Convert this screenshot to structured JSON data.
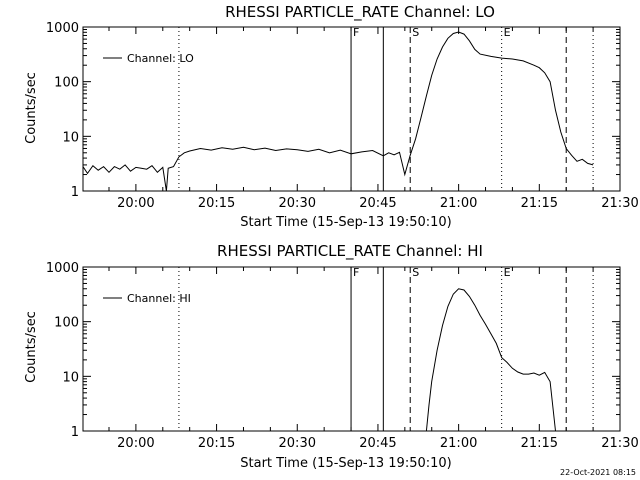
{
  "footer": {
    "timestamp": "22-Oct-2021 08:15"
  },
  "chart_data": [
    {
      "type": "line",
      "title": "RHESSI PARTICLE_RATE Channel: LO",
      "xlabel": "Start Time (15-Sep-13 19:50:10)",
      "ylabel": "Counts/sec",
      "yscale": "log",
      "xlim": [
        "19:50:10",
        "21:30:00"
      ],
      "ylim": [
        1,
        1000
      ],
      "xticks": [
        "20:00",
        "20:15",
        "20:30",
        "20:45",
        "21:00",
        "21:15",
        "21:30"
      ],
      "yticks": [
        "1",
        "10",
        "100",
        "1000"
      ],
      "grid": false,
      "legend_position": "top-left",
      "series": [
        {
          "name": "Channel: LO",
          "x": [
            "19:50:10",
            "19:51",
            "19:52",
            "19:53",
            "19:54",
            "19:55",
            "19:56",
            "19:57",
            "19:58",
            "19:59",
            "20:00",
            "20:01",
            "20:02",
            "20:03",
            "20:04",
            "20:05",
            "20:05:40",
            "20:06",
            "20:07",
            "20:08",
            "20:09",
            "20:10",
            "20:12",
            "20:14",
            "20:16",
            "20:18",
            "20:20",
            "20:22",
            "20:24",
            "20:26",
            "20:28",
            "20:30",
            "20:32",
            "20:34",
            "20:36",
            "20:38",
            "20:40",
            "20:42",
            "20:44",
            "20:46",
            "20:47",
            "20:48",
            "20:49",
            "20:50",
            "20:51",
            "20:52",
            "20:53",
            "20:54",
            "20:55",
            "20:56",
            "20:57",
            "20:58",
            "20:59",
            "21:00",
            "21:01",
            "21:02",
            "21:03",
            "21:04",
            "21:06",
            "21:08",
            "21:10",
            "21:12",
            "21:14",
            "21:15",
            "21:16",
            "21:17",
            "21:18",
            "21:19",
            "21:20",
            "21:21",
            "21:22",
            "21:23",
            "21:24",
            "21:25"
          ],
          "values": [
            2.8,
            2.1,
            2.9,
            2.4,
            2.8,
            2.2,
            2.8,
            2.5,
            3.0,
            2.3,
            2.7,
            2.6,
            2.5,
            2.9,
            2.2,
            2.7,
            1.0,
            2.6,
            2.8,
            4.2,
            5.0,
            5.4,
            6.0,
            5.6,
            6.2,
            5.8,
            6.3,
            5.7,
            6.1,
            5.5,
            5.9,
            5.7,
            5.3,
            5.8,
            5.0,
            5.6,
            4.8,
            5.2,
            5.5,
            4.4,
            5.0,
            4.6,
            5.1,
            2.0,
            4.5,
            9.0,
            22,
            55,
            130,
            260,
            430,
            620,
            760,
            810,
            740,
            560,
            390,
            320,
            290,
            270,
            260,
            240,
            200,
            180,
            145,
            100,
            30,
            12,
            6.0,
            4.5,
            3.5,
            3.8,
            3.2,
            3.0
          ]
        }
      ],
      "markers": [
        {
          "x": "20:08",
          "label": "",
          "style": "dotted"
        },
        {
          "x": "20:40",
          "label": "F",
          "style": "solid"
        },
        {
          "x": "20:46",
          "label": "",
          "style": "solid"
        },
        {
          "x": "20:51",
          "label": "S",
          "style": "dashed"
        },
        {
          "x": "21:08",
          "label": "E",
          "style": "dotted"
        },
        {
          "x": "21:20",
          "label": "",
          "style": "dashed"
        },
        {
          "x": "21:25",
          "label": "",
          "style": "dotted"
        }
      ]
    },
    {
      "type": "line",
      "title": "RHESSI PARTICLE_RATE Channel: HI",
      "xlabel": "Start Time (15-Sep-13 19:50:10)",
      "ylabel": "Counts/sec",
      "yscale": "log",
      "xlim": [
        "19:50:10",
        "21:30:00"
      ],
      "ylim": [
        1,
        1000
      ],
      "xticks": [
        "20:00",
        "20:15",
        "20:30",
        "20:45",
        "21:00",
        "21:15",
        "21:30"
      ],
      "yticks": [
        "1",
        "10",
        "100",
        "1000"
      ],
      "grid": false,
      "legend_position": "top-left",
      "series": [
        {
          "name": "Channel: HI",
          "x": [
            "20:54",
            "20:54:30",
            "20:55",
            "20:56",
            "20:57",
            "20:58",
            "20:59",
            "21:00",
            "21:01",
            "21:02",
            "21:03",
            "21:04",
            "21:05",
            "21:06",
            "21:07",
            "21:08",
            "21:09",
            "21:10",
            "21:11",
            "21:12",
            "21:13",
            "21:14",
            "21:15",
            "21:16",
            "21:17",
            "21:18"
          ],
          "values": [
            1.0,
            3,
            8,
            30,
            85,
            190,
            320,
            400,
            380,
            290,
            200,
            130,
            90,
            60,
            40,
            22,
            18,
            14,
            12,
            11,
            11,
            11.5,
            10.5,
            11.8,
            8,
            1.0
          ]
        }
      ],
      "markers": [
        {
          "x": "20:08",
          "label": "",
          "style": "dotted"
        },
        {
          "x": "20:40",
          "label": "F",
          "style": "solid"
        },
        {
          "x": "20:46",
          "label": "",
          "style": "solid"
        },
        {
          "x": "20:51",
          "label": "S",
          "style": "dashed"
        },
        {
          "x": "21:08",
          "label": "E",
          "style": "dotted"
        },
        {
          "x": "21:20",
          "label": "",
          "style": "dashed"
        },
        {
          "x": "21:25",
          "label": "",
          "style": "dotted"
        }
      ]
    }
  ]
}
